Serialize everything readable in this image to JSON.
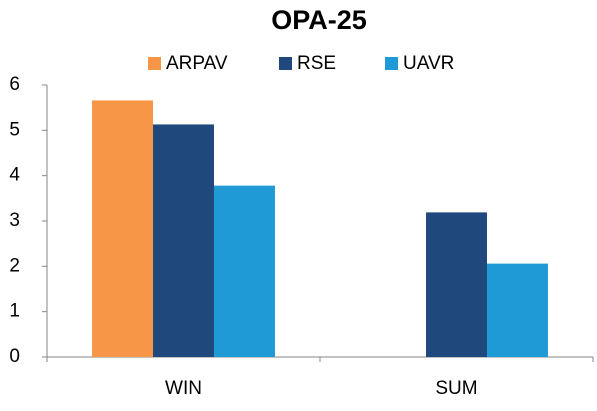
{
  "chart_data": {
    "type": "bar",
    "title": "OPA-25",
    "categories": [
      "WIN",
      "SUM"
    ],
    "series": [
      {
        "name": "ARPAV",
        "color": "#f79646",
        "values": [
          5.66,
          null
        ]
      },
      {
        "name": "RSE",
        "color": "#1f497d",
        "values": [
          5.13,
          3.19
        ]
      },
      {
        "name": "UAVR",
        "color": "#1f9ad6",
        "values": [
          3.78,
          2.06
        ]
      }
    ],
    "ylim": [
      0,
      6
    ],
    "yticks": [
      0,
      1,
      2,
      3,
      4,
      5,
      6
    ],
    "grid": false,
    "legend": "top"
  }
}
